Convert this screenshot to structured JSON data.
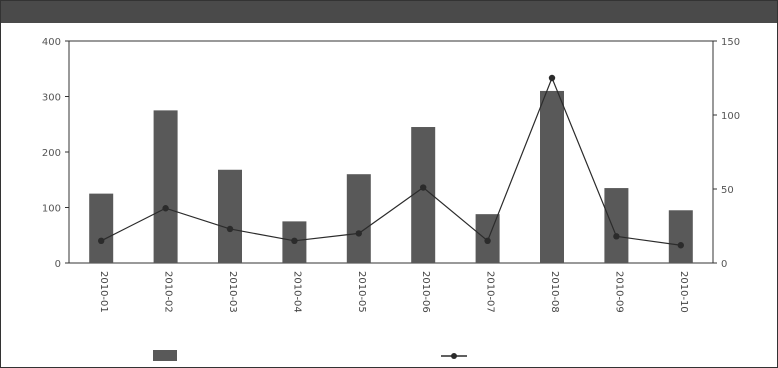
{
  "title": "",
  "chart_data": {
    "type": "bar",
    "categories": [
      "2010-01",
      "2010-02",
      "2010-03",
      "2010-04",
      "2010-05",
      "2010-06",
      "2010-07",
      "2010-08",
      "2010-09",
      "2010-10"
    ],
    "series": [
      {
        "name": "",
        "type": "bar",
        "axis": "left",
        "color": "#595959",
        "values": [
          125,
          275,
          168,
          75,
          160,
          245,
          88,
          310,
          135,
          95
        ]
      },
      {
        "name": "",
        "type": "line",
        "axis": "right",
        "color": "#2b2b2b",
        "values": [
          15,
          37,
          23,
          15,
          20,
          51,
          15,
          125,
          18,
          12
        ]
      }
    ],
    "left_axis": {
      "label": "",
      "ticks": [
        "0",
        "100",
        "200",
        "300",
        "400"
      ],
      "ylim": [
        0,
        400
      ]
    },
    "right_axis": {
      "label": "",
      "ticks": [
        "0",
        "50",
        "100",
        "150"
      ],
      "ylim": [
        0,
        150
      ]
    },
    "legend": {
      "placement": "bottom",
      "bar_label": "",
      "line_label": ""
    }
  }
}
